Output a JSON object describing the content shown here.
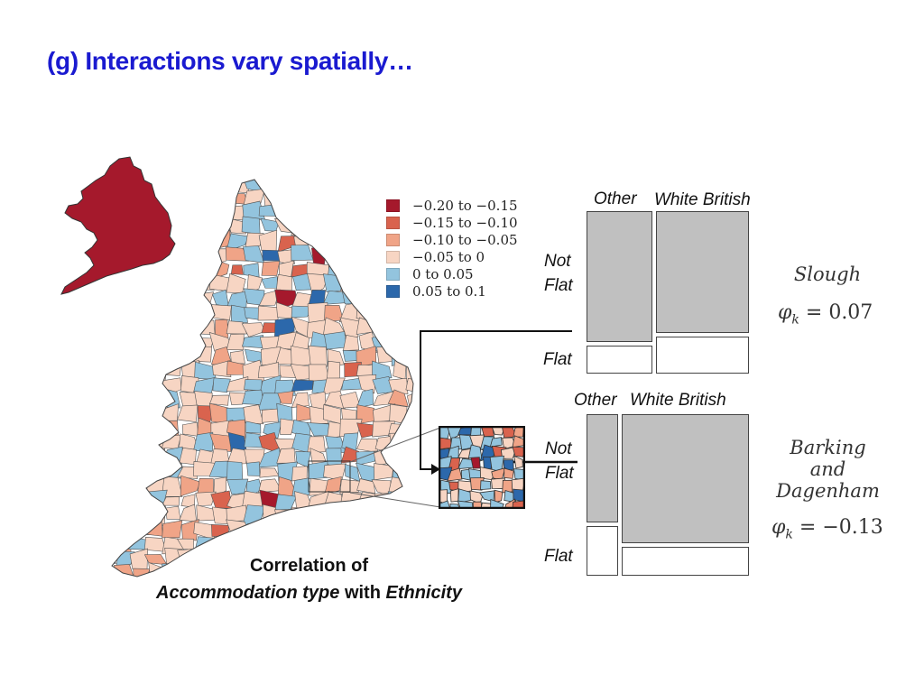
{
  "title": "(g) Interactions vary spatially…",
  "legend": {
    "items": [
      {
        "label": "−0.20 to −0.15",
        "color": "#a5192c"
      },
      {
        "label": "−0.15 to −0.10",
        "color": "#d9634e"
      },
      {
        "label": "−0.10 to −0.05",
        "color": "#f0a487"
      },
      {
        "label": "−0.05 to 0",
        "color": "#f7d5c3"
      },
      {
        "label": "0 to 0.05",
        "color": "#93c4de"
      },
      {
        "label": "0.05 to 0.1",
        "color": "#2c68ab"
      }
    ]
  },
  "england_silhouette_color": "#a5192c",
  "mosaics": {
    "slough": {
      "col_other": "Other",
      "col_white_british": "White British",
      "row_not": "Not",
      "row_flat_top": "Flat",
      "row_flat": "Flat",
      "place": "Slough",
      "phi_symbol": "φ",
      "phi_sub": "k",
      "phi_value": "= 0.07"
    },
    "barking": {
      "col_other": "Other",
      "col_white_british": "White British",
      "row_not": "Not",
      "row_flat_top": "Flat",
      "row_flat": "Flat",
      "place_line1": "Barking",
      "place_line2": "and",
      "place_line3": "Dagenham",
      "phi_symbol": "φ",
      "phi_sub": "k",
      "phi_value": "= −0.13"
    }
  },
  "caption": {
    "line1": "Correlation of",
    "italic1": "Accommodation type",
    "mid": " with ",
    "italic2": "Ethnicity"
  }
}
